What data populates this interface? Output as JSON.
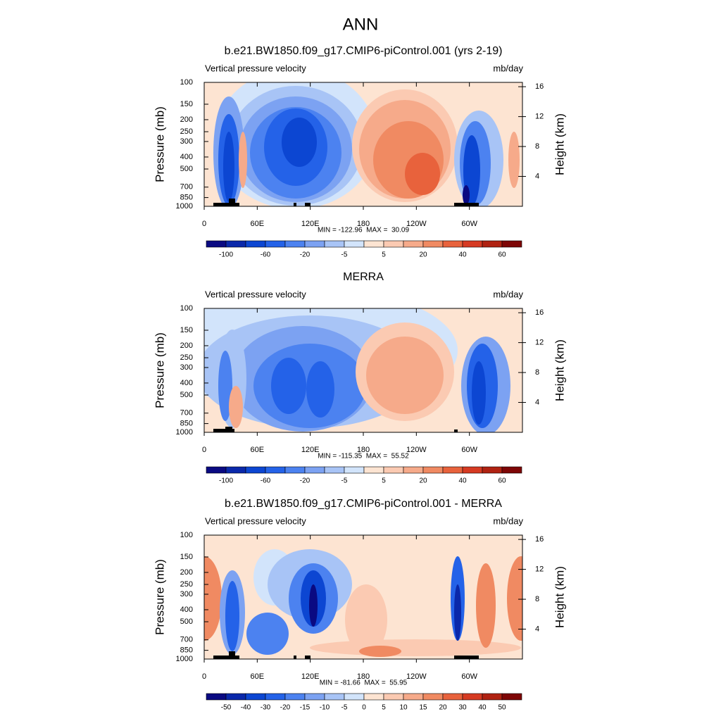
{
  "title": "ANN",
  "chart_data": [
    {
      "type": "contour",
      "title": "b.e21.BW1850.f09_g17.CMIP6-piControl.001 (yrs 2-19)",
      "left_label": "Vertical pressure velocity",
      "right_label": "mb/day",
      "ylabel": "Pressure (mb)",
      "y2label": "Height (km)",
      "xlim": [
        0,
        360
      ],
      "xticks": [
        0,
        {
          "value": 60,
          "label": "60E"
        },
        {
          "value": 120,
          "label": "120E"
        },
        180,
        {
          "value": 240,
          "label": "120W"
        },
        {
          "value": 300,
          "label": "60W"
        }
      ],
      "ylim": [
        1000,
        100
      ],
      "log_y": true,
      "yticks": [
        100,
        150,
        200,
        250,
        300,
        400,
        500,
        700,
        850,
        1000
      ],
      "y2ticks": [
        4,
        8,
        12,
        16
      ],
      "stats": "MIN = -122.96  MAX =  30.09",
      "colorbar": {
        "levels": [
          -100,
          null,
          -60,
          null,
          -20,
          null,
          -5,
          null,
          5,
          null,
          20,
          null,
          40,
          null,
          60
        ],
        "colors": [
          "#0a0a82",
          "#0a28aa",
          "#0c46d2",
          "#2462e8",
          "#4c82f0",
          "#7ca2f2",
          "#a8c4f6",
          "#d2e4fb",
          "#fde4d2",
          "#fbcab2",
          "#f6aa8a",
          "#f08a62",
          "#e8623c",
          "#d63a22",
          "#b02212",
          "#7e0606"
        ]
      }
    },
    {
      "type": "contour",
      "title": "MERRA",
      "left_label": "Vertical pressure velocity",
      "right_label": "mb/day",
      "ylabel": "Pressure (mb)",
      "y2label": "Height (km)",
      "xlim": [
        0,
        360
      ],
      "xticks": [
        0,
        {
          "value": 60,
          "label": "60E"
        },
        {
          "value": 120,
          "label": "120E"
        },
        180,
        {
          "value": 240,
          "label": "120W"
        },
        {
          "value": 300,
          "label": "60W"
        }
      ],
      "ylim": [
        1000,
        100
      ],
      "log_y": true,
      "yticks": [
        100,
        150,
        200,
        250,
        300,
        400,
        500,
        700,
        850,
        1000
      ],
      "y2ticks": [
        4,
        8,
        12,
        16
      ],
      "stats": "MIN = -115.35  MAX =  55.52",
      "colorbar": {
        "levels": [
          -100,
          null,
          -60,
          null,
          -20,
          null,
          -5,
          null,
          5,
          null,
          20,
          null,
          40,
          null,
          60
        ],
        "colors": [
          "#0a0a82",
          "#0a28aa",
          "#0c46d2",
          "#2462e8",
          "#4c82f0",
          "#7ca2f2",
          "#a8c4f6",
          "#d2e4fb",
          "#fde4d2",
          "#fbcab2",
          "#f6aa8a",
          "#f08a62",
          "#e8623c",
          "#d63a22",
          "#b02212",
          "#7e0606"
        ]
      }
    },
    {
      "type": "contour",
      "title": "b.e21.BW1850.f09_g17.CMIP6-piControl.001 - MERRA",
      "left_label": "Vertical pressure velocity",
      "right_label": "mb/day",
      "ylabel": "Pressure (mb)",
      "y2label": "Height (km)",
      "xlim": [
        0,
        360
      ],
      "xticks": [
        0,
        {
          "value": 60,
          "label": "60E"
        },
        {
          "value": 120,
          "label": "120E"
        },
        180,
        {
          "value": 240,
          "label": "120W"
        },
        {
          "value": 300,
          "label": "60W"
        }
      ],
      "ylim": [
        1000,
        100
      ],
      "log_y": true,
      "yticks": [
        100,
        150,
        200,
        250,
        300,
        400,
        500,
        700,
        850,
        1000
      ],
      "y2ticks": [
        4,
        8,
        12,
        16
      ],
      "stats": "MIN = -81.66  MAX =  55.95",
      "colorbar": {
        "levels": [
          -50,
          -40,
          -30,
          -20,
          -15,
          -10,
          -5,
          0,
          5,
          10,
          15,
          20,
          30,
          40,
          50
        ],
        "colors": [
          "#0a0a82",
          "#0a28aa",
          "#0c46d2",
          "#2462e8",
          "#4c82f0",
          "#7ca2f2",
          "#a8c4f6",
          "#d2e4fb",
          "#fde4d2",
          "#fbcab2",
          "#f6aa8a",
          "#f08a62",
          "#e8623c",
          "#d63a22",
          "#b02212",
          "#7e0606"
        ]
      }
    }
  ]
}
